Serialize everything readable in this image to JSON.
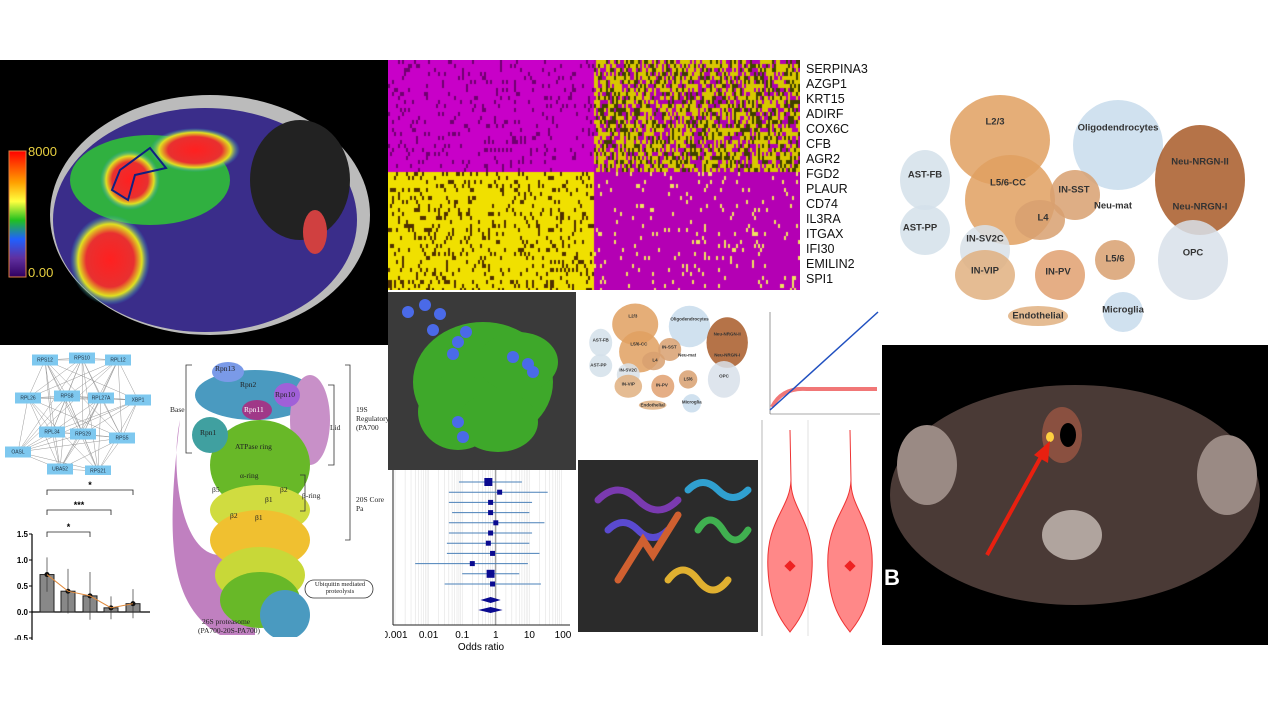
{
  "mri": {
    "colorbar_max": "8000",
    "colorbar_min": "0.00"
  },
  "heatmap": {
    "genes": [
      "SERPINA3",
      "AZGP1",
      "KRT15",
      "ADIRF",
      "COX6C",
      "CFB",
      "AGR2",
      "FGD2",
      "PLAUR",
      "CD74",
      "IL3RA",
      "ITGAX",
      "IFI30",
      "EMILIN2",
      "SPI1"
    ],
    "colors": {
      "high": "#f5e800",
      "low": "#c800c8",
      "mid": "#000000"
    }
  },
  "tsne": {
    "labels": [
      "L2/3",
      "Oligodendrocytes",
      "AST-FB",
      "L5/6-CC",
      "IN-SST",
      "Neu-mat",
      "Neu-NRGN-II",
      "Neu-NRGN-I",
      "AST-PP",
      "L4",
      "IN-SV2C",
      "L5/6",
      "IN-VIP",
      "IN-PV",
      "OPC",
      "Endothelial",
      "Microglia"
    ]
  },
  "network": {
    "nodes": [
      "RPS12",
      "RPS10",
      "RPL12",
      "RPL26",
      "RPS8",
      "RPL27A",
      "XBP1",
      "RPL34",
      "RPS29",
      "RPS5",
      "OASL",
      "UBA52",
      "RPS21"
    ]
  },
  "proteasome": {
    "labels": {
      "rpn13": "Rpn13",
      "rpn2": "Rpn2",
      "rpn10": "Rpn10",
      "rpn11": "Rpn11",
      "rpn1": "Rpn1",
      "atpase": "ATPase ring",
      "alpha": "α-ring",
      "b5": "β5",
      "b2a": "β2",
      "b1a": "β1",
      "b2b": "β2",
      "b1b": "β1",
      "base": "Base",
      "lid": "Lid",
      "beta_ring": "β-ring",
      "reg": "19S Regulatory (PA700",
      "core": "20S Core Pa",
      "ubiq": "Ubiquitin mediated proteolysis",
      "name": "26S proteasome",
      "name2": "(PA700-20S-PA700)"
    }
  },
  "ct": {
    "panel_label": "B"
  },
  "chart_data": [
    {
      "type": "bar",
      "categories": [
        "",
        "",
        "",
        "",
        ""
      ],
      "values": [
        0.72,
        0.4,
        0.31,
        0.08,
        0.16
      ],
      "errors": [
        0.33,
        0.43,
        0.46,
        0.22,
        0.28
      ],
      "ylim": [
        -0.5,
        1.5
      ],
      "yticks": [
        "1.5",
        "1.0",
        "0.5",
        "0.0",
        "-0.5"
      ],
      "significance": [
        "*",
        "***",
        "*"
      ],
      "trend_color": "#e08a3c"
    },
    {
      "type": "forest",
      "xlabel": "Odds ratio",
      "xscale": "log",
      "xticks": [
        "0.001",
        "0.01",
        "0.1",
        "1",
        "10",
        "100"
      ],
      "rows": [
        [
          0.6,
          0.08,
          6
        ],
        [
          1.3,
          0.04,
          35
        ],
        [
          0.7,
          0.04,
          12
        ],
        [
          0.7,
          0.05,
          10
        ],
        [
          1.0,
          0.04,
          28
        ],
        [
          0.7,
          0.04,
          12
        ],
        [
          0.6,
          0.035,
          10
        ],
        [
          0.8,
          0.035,
          20
        ],
        [
          0.2,
          0.004,
          9
        ],
        [
          0.7,
          0.1,
          5
        ],
        [
          0.8,
          0.03,
          22
        ]
      ],
      "summary": [
        [
          0.7,
          0.35,
          1.4
        ],
        [
          0.7,
          0.3,
          1.6
        ]
      ]
    }
  ]
}
